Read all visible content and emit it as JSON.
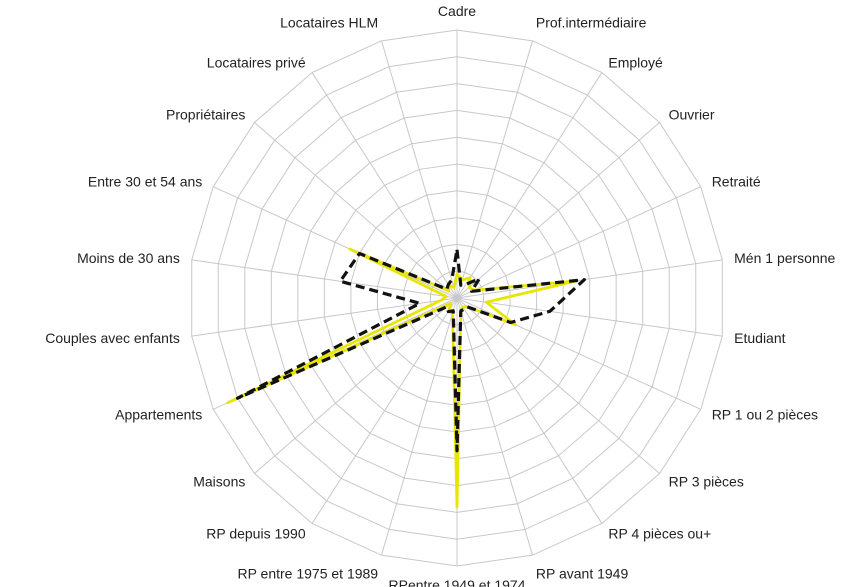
{
  "chart_data": {
    "type": "radar",
    "title": "",
    "grid": true,
    "legend": "none",
    "range": [
      0,
      10
    ],
    "ring_count": 10,
    "categories": [
      "Cadre",
      "Prof.intermédiaire",
      "Employé",
      "Ouvrier",
      "Retraité",
      "Mén 1 personne",
      "Etudiant",
      "RP 1 ou 2 pièces",
      "RP 3 pièces",
      "RP 4 pièces ou+",
      "RP avant 1949",
      "RPentre 1949 et 1974",
      "RP entre 1975 et 1989",
      "RP depuis 1990",
      "Maisons",
      "Appartements",
      "Couples avec enfants",
      "Moins de 30 ans",
      "Entre 30 et 54 ans",
      "Propriétaires",
      "Locataires privé",
      "Locataires HLM"
    ],
    "series": [
      {
        "color": "#e8e600",
        "style": "solid",
        "values": [
          0.9,
          0.7,
          0.9,
          0.6,
          0.7,
          4.5,
          1.1,
          2.4,
          0.5,
          0.4,
          0.5,
          7.8,
          0.6,
          0.6,
          0.3,
          9.4,
          0.6,
          0.4,
          4.4,
          0.4,
          0.6,
          0.4
        ]
      },
      {
        "color": "#111111",
        "style": "dashed",
        "values": [
          1.8,
          0.5,
          0.6,
          1.1,
          0.6,
          4.8,
          3.5,
          2.2,
          0.5,
          0.5,
          0.5,
          5.7,
          0.5,
          0.6,
          0.5,
          9.0,
          1.4,
          4.4,
          4.0,
          0.5,
          0.6,
          0.7
        ]
      }
    ]
  }
}
